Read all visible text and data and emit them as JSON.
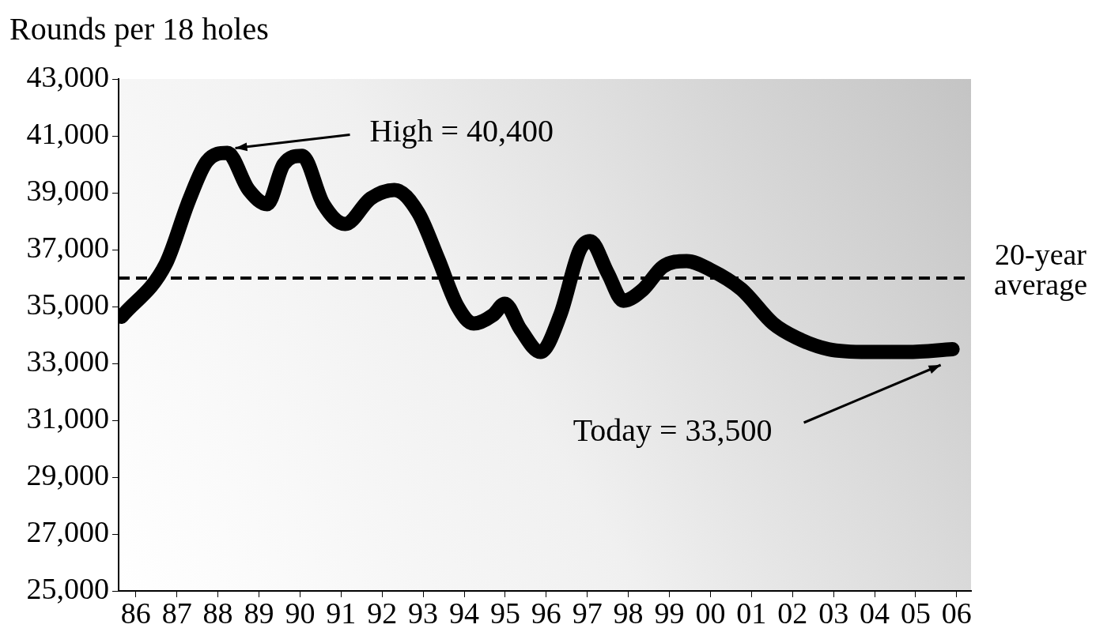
{
  "chart_data": {
    "type": "line",
    "ylabel": "Rounds per 18 holes",
    "xlim": [
      1985.58,
      2006.35
    ],
    "xticks": [
      {
        "value": 1986,
        "label": "86"
      },
      {
        "value": 1987,
        "label": "87"
      },
      {
        "value": 1988,
        "label": "88"
      },
      {
        "value": 1989,
        "label": "89"
      },
      {
        "value": 1990,
        "label": "90"
      },
      {
        "value": 1991,
        "label": "91"
      },
      {
        "value": 1992,
        "label": "92"
      },
      {
        "value": 1993,
        "label": "93"
      },
      {
        "value": 1994,
        "label": "94"
      },
      {
        "value": 1995,
        "label": "95"
      },
      {
        "value": 1996,
        "label": "96"
      },
      {
        "value": 1997,
        "label": "97"
      },
      {
        "value": 1998,
        "label": "98"
      },
      {
        "value": 1999,
        "label": "99"
      },
      {
        "value": 2000,
        "label": "00"
      },
      {
        "value": 2001,
        "label": "01"
      },
      {
        "value": 2002,
        "label": "02"
      },
      {
        "value": 2003,
        "label": "03"
      },
      {
        "value": 2004,
        "label": "04"
      },
      {
        "value": 2005,
        "label": "05"
      },
      {
        "value": 2006,
        "label": "06"
      }
    ],
    "ylim": [
      25000,
      43000
    ],
    "yticks": [
      {
        "value": 25000,
        "label": "25,000"
      },
      {
        "value": 27000,
        "label": "27,000"
      },
      {
        "value": 29000,
        "label": "29,000"
      },
      {
        "value": 31000,
        "label": "31,000"
      },
      {
        "value": 33000,
        "label": "33,000"
      },
      {
        "value": 35000,
        "label": "35,000"
      },
      {
        "value": 37000,
        "label": "37,000"
      },
      {
        "value": 39000,
        "label": "39,000"
      },
      {
        "value": 41000,
        "label": "41,000"
      },
      {
        "value": 43000,
        "label": "43,000"
      }
    ],
    "x": [
      1985.65,
      1986.73,
      1987.3,
      1987.73,
      1988.23,
      1988.75,
      1989.2,
      1989.6,
      1990.05,
      1990.57,
      1991.1,
      1991.72,
      1992.3,
      1992.88,
      1993.36,
      1993.84,
      1994.23,
      1994.7,
      1994.99,
      1995.37,
      1995.86,
      1996.34,
      1996.82,
      1997.07,
      1997.49,
      1997.88,
      1998.36,
      1998.84,
      1999.42,
      1999.99,
      2000.76,
      2001.53,
      2002.1,
      2002.87,
      2003.84,
      2004.8,
      2005.9
    ],
    "series": [
      {
        "color": "#000000",
        "values": [
          34640,
          36500,
          38750,
          40100,
          40400,
          39100,
          38600,
          40000,
          40300,
          38600,
          37900,
          38800,
          39100,
          38300,
          36700,
          35000,
          34400,
          34700,
          35100,
          34200,
          33400,
          34700,
          37000,
          37300,
          36200,
          35200,
          35600,
          36400,
          36600,
          36300,
          35600,
          34400,
          33900,
          33500,
          33400,
          33400,
          33500
        ]
      }
    ],
    "ref_lines": [
      {
        "axis": "y",
        "value": 36000,
        "label": "20-year average",
        "color": "#000000",
        "line_style": "dashed"
      }
    ],
    "annotations": [
      "High = 40,400",
      "Today = 33,500"
    ],
    "grid": false,
    "legend": false,
    "marker": "none",
    "line_style": "solid"
  }
}
